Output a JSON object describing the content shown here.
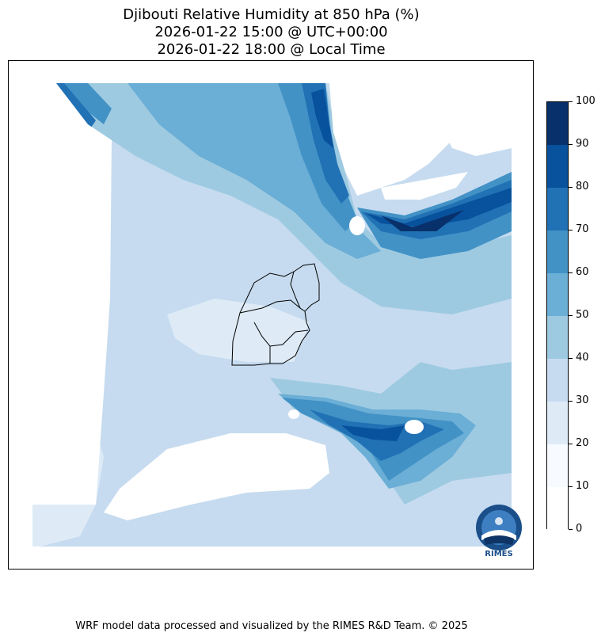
{
  "title": {
    "line1": "Djibouti Relative Humidity at 850 hPa (%)",
    "line2": "2026-01-22 15:00 @ UTC+00:00",
    "line3": "2026-01-22 18:00 @ Local Time"
  },
  "colorbar": {
    "labels": [
      "100",
      "90",
      "80",
      "70",
      "60",
      "50",
      "40",
      "30",
      "20",
      "10",
      "0"
    ],
    "colors_top_to_bottom": [
      "#08306b",
      "#08519c",
      "#2171b5",
      "#4292c6",
      "#6baed6",
      "#9ecae1",
      "#c6dbef",
      "#deebf7",
      "#f7fbff",
      "#ffffff"
    ],
    "colors": {
      "c10": "#f7fbff",
      "c20": "#deebf7",
      "c30": "#c6dbef",
      "c40": "#9ecae1",
      "c50": "#6baed6",
      "c60": "#4292c6",
      "c70": "#2171b5",
      "c80": "#08519c",
      "c90": "#08306b"
    }
  },
  "logo": {
    "text": "RIMES",
    "icon": "rimes-logo-icon"
  },
  "footer": "WRF model data processed and visualized by the RIMES R&D Team. © 2025"
}
